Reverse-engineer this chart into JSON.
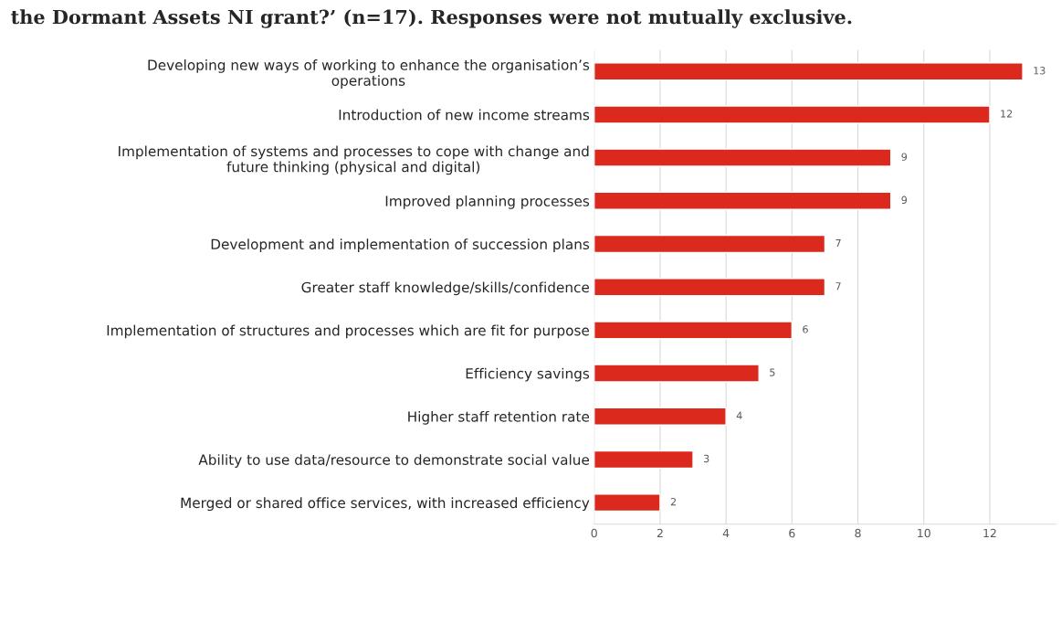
{
  "chart_data": {
    "type": "bar",
    "orientation": "horizontal",
    "title": "the Dormant Assets NI grant?’ (n=17). Responses were not mutually exclusive.",
    "categories": [
      "Developing new ways of working to enhance the organisation’s\noperations",
      "Introduction of new income streams",
      "Implementation of systems and processes to cope with change and\nfuture thinking (physical and digital)",
      "Improved planning processes",
      "Development and implementation of succession plans",
      "Greater staff knowledge/skills/confidence",
      "Implementation of structures and processes which are fit for purpose",
      "Efficiency savings",
      "Higher staff retention rate",
      "Ability to use data/resource to demonstrate social value",
      "Merged or shared office services, with increased efficiency"
    ],
    "values": [
      13,
      12,
      9,
      9,
      7,
      7,
      6,
      5,
      4,
      3,
      2
    ],
    "color": "#dc291e",
    "xlim": [
      0,
      14
    ],
    "xticks": [
      0,
      2,
      4,
      6,
      8,
      10,
      12
    ],
    "grid": "x",
    "data_labels": true
  }
}
